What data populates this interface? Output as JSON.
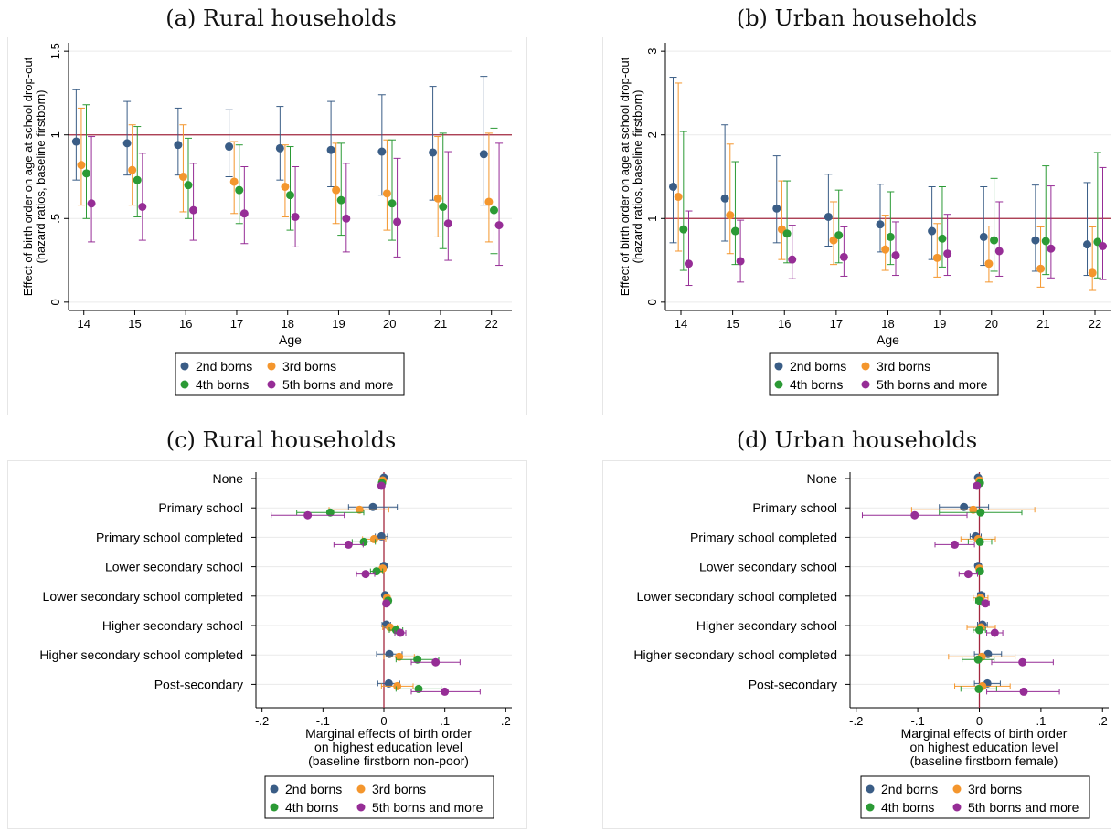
{
  "colors": {
    "s1": "#3a5d86",
    "s2": "#f4962d",
    "s3": "#2b9a35",
    "s4": "#962d96",
    "refline": "#a3283f",
    "axis": "#000000",
    "grid": "#eaeaea"
  },
  "panels": {
    "a": {
      "title": "(a) Rural households"
    },
    "b": {
      "title": "(b) Urban households"
    },
    "c": {
      "title": "(c) Rural households"
    },
    "d": {
      "title": "(d) Urban households"
    }
  },
  "chart_data": [
    {
      "id": "a",
      "type": "scatter",
      "title": "(a) Rural households",
      "xlabel": "Age",
      "ylabel": [
        "Effect of birth order on age at school drop-out",
        "(hazard ratios, baseline firstborn)"
      ],
      "x": [
        14,
        15,
        16,
        17,
        18,
        19,
        20,
        21,
        22
      ],
      "xlim": [
        13.7,
        22.4
      ],
      "ylim": [
        -0.05,
        1.55
      ],
      "yticks": [
        0,
        0.5,
        1,
        1.5
      ],
      "ytick_labels": [
        "0",
        ".5",
        "1",
        "1.5"
      ],
      "reference_line": 1,
      "legend_position": "bottom",
      "series": [
        {
          "name": "2nd borns",
          "estimates": [
            0.96,
            0.95,
            0.94,
            0.93,
            0.92,
            0.91,
            0.9,
            0.895,
            0.885
          ],
          "ci_low": [
            0.73,
            0.76,
            0.76,
            0.75,
            0.73,
            0.69,
            0.64,
            0.61,
            0.58
          ],
          "ci_high": [
            1.27,
            1.2,
            1.16,
            1.15,
            1.17,
            1.2,
            1.24,
            1.29,
            1.35
          ]
        },
        {
          "name": "3rd borns",
          "estimates": [
            0.82,
            0.79,
            0.75,
            0.72,
            0.69,
            0.67,
            0.65,
            0.62,
            0.6
          ],
          "ci_low": [
            0.58,
            0.58,
            0.54,
            0.53,
            0.51,
            0.47,
            0.43,
            0.39,
            0.36
          ],
          "ci_high": [
            1.16,
            1.06,
            1.06,
            0.96,
            0.94,
            0.95,
            0.97,
            0.99,
            1.01
          ]
        },
        {
          "name": "4th borns",
          "estimates": [
            0.77,
            0.73,
            0.7,
            0.67,
            0.64,
            0.61,
            0.59,
            0.57,
            0.55
          ],
          "ci_low": [
            0.5,
            0.51,
            0.5,
            0.47,
            0.43,
            0.4,
            0.37,
            0.32,
            0.29
          ],
          "ci_high": [
            1.18,
            1.05,
            0.98,
            0.94,
            0.93,
            0.95,
            0.97,
            1.01,
            1.04
          ]
        },
        {
          "name": "5th borns and more",
          "estimates": [
            0.59,
            0.57,
            0.55,
            0.53,
            0.51,
            0.5,
            0.48,
            0.47,
            0.46
          ],
          "ci_low": [
            0.36,
            0.37,
            0.37,
            0.35,
            0.33,
            0.3,
            0.27,
            0.25,
            0.22
          ],
          "ci_high": [
            0.99,
            0.89,
            0.83,
            0.81,
            0.81,
            0.83,
            0.86,
            0.9,
            0.95
          ]
        }
      ]
    },
    {
      "id": "b",
      "type": "scatter",
      "title": "(b) Urban households",
      "xlabel": "Age",
      "ylabel": [
        "Effect of birth order on age at school drop-out",
        "(hazard ratios, baseline firstborn)"
      ],
      "x": [
        14,
        15,
        16,
        17,
        18,
        19,
        20,
        21,
        22
      ],
      "xlim": [
        13.7,
        22.3
      ],
      "ylim": [
        -0.1,
        3.1
      ],
      "yticks": [
        0,
        1,
        2,
        3
      ],
      "ytick_labels": [
        "0",
        "1",
        "2",
        "3"
      ],
      "reference_line": 1,
      "legend_position": "bottom",
      "series": [
        {
          "name": "2nd borns",
          "estimates": [
            1.38,
            1.24,
            1.12,
            1.02,
            0.93,
            0.85,
            0.78,
            0.74,
            0.69
          ],
          "ci_low": [
            0.71,
            0.73,
            0.71,
            0.67,
            0.6,
            0.51,
            0.44,
            0.37,
            0.32
          ],
          "ci_high": [
            2.69,
            2.12,
            1.75,
            1.53,
            1.41,
            1.38,
            1.38,
            1.4,
            1.43
          ]
        },
        {
          "name": "3rd borns",
          "estimates": [
            1.26,
            1.04,
            0.87,
            0.74,
            0.63,
            0.53,
            0.46,
            0.4,
            0.35
          ],
          "ci_low": [
            0.61,
            0.58,
            0.51,
            0.45,
            0.38,
            0.3,
            0.24,
            0.18,
            0.14
          ],
          "ci_high": [
            2.62,
            1.89,
            1.45,
            1.2,
            1.04,
            0.94,
            0.91,
            0.9,
            0.9
          ]
        },
        {
          "name": "4th borns",
          "estimates": [
            0.87,
            0.85,
            0.82,
            0.8,
            0.78,
            0.76,
            0.74,
            0.73,
            0.72
          ],
          "ci_low": [
            0.38,
            0.45,
            0.47,
            0.47,
            0.45,
            0.42,
            0.37,
            0.33,
            0.29
          ],
          "ci_high": [
            2.04,
            1.68,
            1.45,
            1.34,
            1.32,
            1.38,
            1.48,
            1.63,
            1.79
          ]
        },
        {
          "name": "5th borns and more",
          "estimates": [
            0.46,
            0.49,
            0.51,
            0.54,
            0.56,
            0.58,
            0.61,
            0.64,
            0.67
          ],
          "ci_low": [
            0.2,
            0.24,
            0.28,
            0.31,
            0.32,
            0.32,
            0.31,
            0.29,
            0.27
          ],
          "ci_high": [
            1.09,
            0.98,
            0.92,
            0.9,
            0.96,
            1.05,
            1.2,
            1.39,
            1.61
          ]
        }
      ]
    },
    {
      "id": "c",
      "type": "scatter",
      "orientation": "horizontal",
      "title": "(c) Rural households",
      "xlabel": [
        "Marginal effects of birth order",
        "on highest education level",
        "(baseline firstborn non-poor)"
      ],
      "categories": [
        "None",
        "Primary school",
        "Primary school completed",
        "Lower secondary school",
        "Lower secondary school completed",
        "Higher secondary school",
        "Higher secondary school completed",
        "Post-secondary"
      ],
      "xlim": [
        -0.21,
        0.21
      ],
      "xticks": [
        -0.2,
        -0.1,
        0,
        0.1,
        0.2
      ],
      "xtick_labels": [
        "-.2",
        "-.1",
        "0",
        ".1",
        ".2"
      ],
      "reference_line": 0,
      "legend_position": "bottom",
      "series": [
        {
          "name": "2nd borns",
          "estimates": [
            0.0,
            -0.018,
            -0.004,
            0.0,
            0.002,
            0.004,
            0.009,
            0.008
          ],
          "ci_low": [
            -0.002,
            -0.058,
            -0.014,
            -0.003,
            -0.002,
            -0.003,
            -0.012,
            -0.01
          ],
          "ci_high": [
            0.002,
            0.022,
            0.006,
            0.003,
            0.006,
            0.011,
            0.03,
            0.026
          ]
        },
        {
          "name": "3rd borns",
          "estimates": [
            -0.002,
            -0.04,
            -0.016,
            -0.002,
            0.005,
            0.01,
            0.025,
            0.022
          ],
          "ci_low": [
            -0.005,
            -0.09,
            -0.035,
            -0.005,
            0.0,
            -0.002,
            0.0,
            -0.004
          ],
          "ci_high": [
            0.001,
            0.008,
            0.003,
            0.001,
            0.01,
            0.022,
            0.05,
            0.048
          ]
        },
        {
          "name": "4th borns",
          "estimates": [
            -0.003,
            -0.088,
            -0.033,
            -0.012,
            0.007,
            0.02,
            0.055,
            0.057
          ],
          "ci_low": [
            -0.006,
            -0.143,
            -0.052,
            -0.022,
            0.002,
            0.009,
            0.02,
            0.02
          ],
          "ci_high": [
            0.0,
            -0.033,
            -0.014,
            -0.002,
            0.012,
            0.031,
            0.09,
            0.094
          ]
        },
        {
          "name": "5th borns and more",
          "estimates": [
            -0.004,
            -0.125,
            -0.058,
            -0.03,
            0.004,
            0.027,
            0.085,
            0.1
          ],
          "ci_low": [
            -0.007,
            -0.185,
            -0.082,
            -0.045,
            -0.001,
            0.018,
            0.045,
            0.045
          ],
          "ci_high": [
            -0.001,
            -0.065,
            -0.034,
            -0.015,
            0.009,
            0.036,
            0.125,
            0.158
          ]
        }
      ]
    },
    {
      "id": "d",
      "type": "scatter",
      "orientation": "horizontal",
      "title": "(d) Urban households",
      "xlabel": [
        "Marginal effects of birth order",
        "on highest education level",
        "(baseline firstborn female)"
      ],
      "categories": [
        "None",
        "Primary school",
        "Primary school completed",
        "Lower secondary school",
        "Lower secondary school completed",
        "Higher secondary school",
        "Higher secondary school completed",
        "Post-secondary"
      ],
      "xlim": [
        -0.21,
        0.21
      ],
      "xticks": [
        -0.2,
        -0.1,
        0,
        0.1,
        0.2
      ],
      "xtick_labels": [
        "-.2",
        "-.1",
        "0",
        ".1",
        ".2"
      ],
      "reference_line": 0,
      "legend_position": "bottom",
      "series": [
        {
          "name": "2nd borns",
          "estimates": [
            -0.002,
            -0.025,
            -0.006,
            -0.002,
            0.003,
            0.005,
            0.014,
            0.013
          ],
          "ci_low": [
            -0.005,
            -0.065,
            -0.015,
            -0.005,
            -0.003,
            -0.003,
            -0.008,
            -0.008
          ],
          "ci_high": [
            0.001,
            0.015,
            0.003,
            0.001,
            0.009,
            0.013,
            0.036,
            0.034
          ]
        },
        {
          "name": "3rd borns",
          "estimates": [
            0.0,
            -0.01,
            -0.002,
            0.0,
            0.002,
            0.003,
            0.004,
            0.005
          ],
          "ci_low": [
            -0.004,
            -0.11,
            -0.03,
            -0.004,
            -0.01,
            -0.02,
            -0.05,
            -0.04
          ],
          "ci_high": [
            0.004,
            0.09,
            0.026,
            0.004,
            0.014,
            0.026,
            0.058,
            0.05
          ]
        },
        {
          "name": "4th borns",
          "estimates": [
            0.001,
            0.002,
            0.001,
            0.001,
            0.0,
            0.0,
            -0.002,
            -0.001
          ],
          "ci_low": [
            -0.002,
            -0.065,
            -0.018,
            -0.002,
            -0.006,
            -0.01,
            -0.028,
            -0.03
          ],
          "ci_high": [
            0.004,
            0.069,
            0.02,
            0.004,
            0.006,
            0.01,
            0.024,
            0.028
          ]
        },
        {
          "name": "5th borns and more",
          "estimates": [
            -0.004,
            -0.105,
            -0.04,
            -0.018,
            0.01,
            0.025,
            0.07,
            0.072
          ],
          "ci_low": [
            -0.008,
            -0.19,
            -0.072,
            -0.033,
            0.004,
            0.012,
            0.02,
            0.012
          ],
          "ci_high": [
            0.0,
            -0.02,
            -0.008,
            -0.003,
            0.016,
            0.038,
            0.12,
            0.13
          ]
        }
      ]
    }
  ]
}
